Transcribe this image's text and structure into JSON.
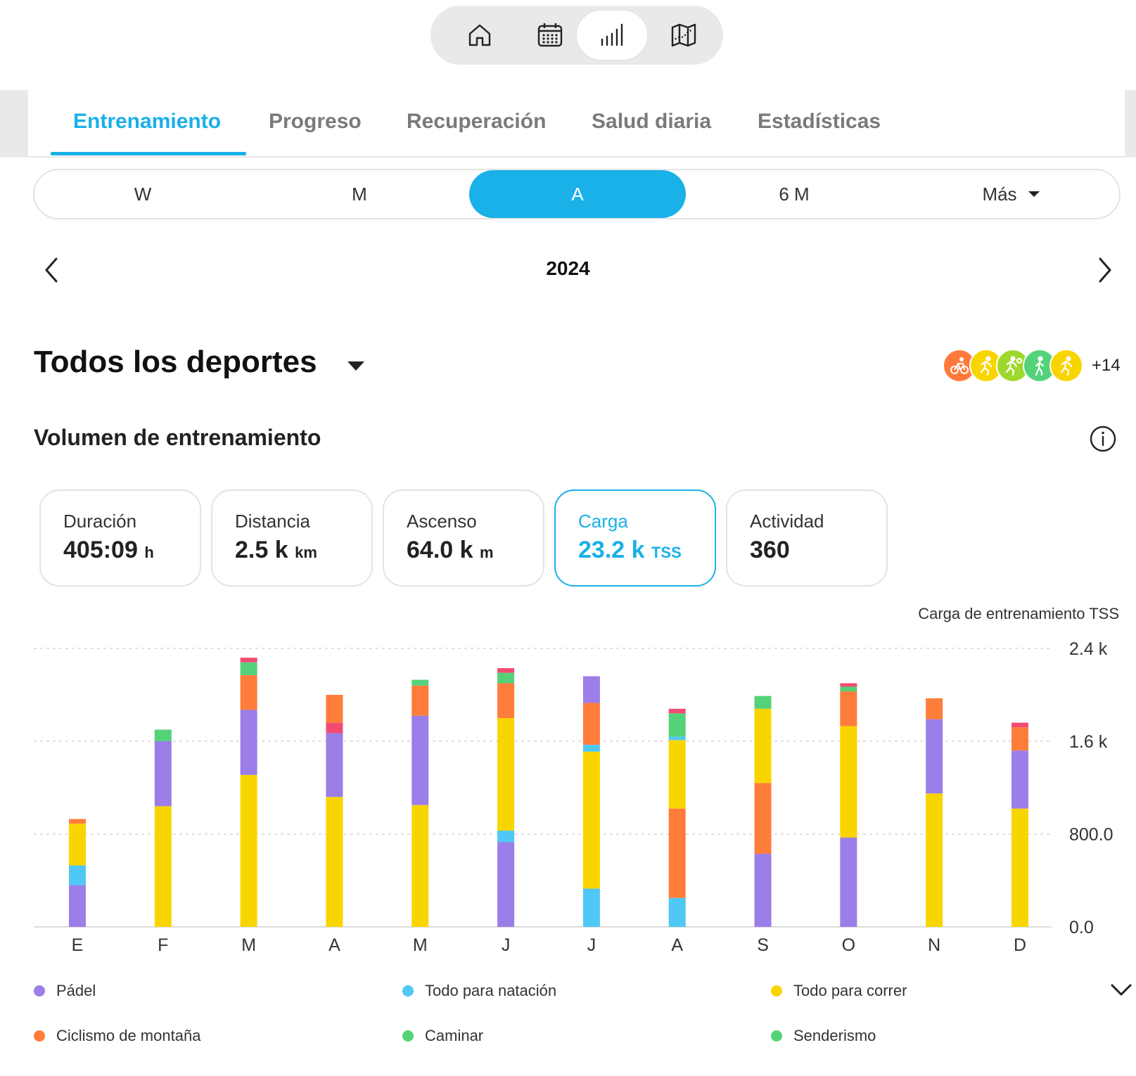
{
  "top_nav": {
    "items": [
      {
        "icon": "home-icon"
      },
      {
        "icon": "calendar-icon"
      },
      {
        "icon": "bar-chart-icon",
        "active": true
      },
      {
        "icon": "map-icon"
      }
    ]
  },
  "tabs": [
    {
      "label": "Entrenamiento",
      "active": true
    },
    {
      "label": "Progreso"
    },
    {
      "label": "Recuperación"
    },
    {
      "label": "Salud diaria"
    },
    {
      "label": "Estadísticas"
    }
  ],
  "period": {
    "options": [
      "W",
      "M",
      "A",
      "6 M",
      "Más"
    ],
    "selected": "A"
  },
  "year_nav": {
    "label": "2024"
  },
  "sport": {
    "title": "Todos los deportes",
    "icons": [
      {
        "icon": "cycling-icon",
        "color": "#ff7a3a"
      },
      {
        "icon": "running-icon",
        "color": "#f9d500"
      },
      {
        "icon": "trail-running-icon",
        "color": "#9ed82c"
      },
      {
        "icon": "walking-icon",
        "color": "#54d27a"
      },
      {
        "icon": "running-icon",
        "color": "#f9d500"
      }
    ],
    "more": "+14"
  },
  "section": {
    "title": "Volumen de entrenamiento"
  },
  "metrics": [
    {
      "label": "Duración",
      "value": "405:09",
      "unit": "h"
    },
    {
      "label": "Distancia",
      "value": "2.5 k",
      "unit": "km"
    },
    {
      "label": "Ascenso",
      "value": "64.0 k",
      "unit": "m"
    },
    {
      "label": "Carga",
      "value": "23.2 k",
      "unit": "TSS",
      "active": true
    },
    {
      "label": "Actividad",
      "value": "360",
      "unit": ""
    }
  ],
  "colors": {
    "accent": "#1ab0e8",
    "padel": "#9b7ee8",
    "natacion": "#4fc8f5",
    "correr": "#f9d500",
    "montana": "#ff7d3a",
    "caminar": "#54d27a",
    "senderismo": "#54d27a",
    "extra": "#f24b72"
  },
  "chart_data": {
    "type": "bar",
    "stacked": true,
    "title": "",
    "ylabel": "Carga de entrenamiento TSS",
    "xlabel": "",
    "ylim": [
      0,
      2400
    ],
    "ytick_labels": [
      "0.0",
      "800.0",
      "1.6 k",
      "2.4 k"
    ],
    "ytick_values": [
      0,
      800,
      1600,
      2400
    ],
    "grid": true,
    "categories": [
      "E",
      "F",
      "M",
      "A",
      "M",
      "J",
      "J",
      "A",
      "S",
      "O",
      "N",
      "D"
    ],
    "series": [
      {
        "name": "Pádel",
        "color": "#9b7ee8",
        "values": [
          360,
          0,
          0,
          0,
          0,
          730,
          0,
          0,
          630,
          770,
          0,
          0
        ]
      },
      {
        "name": "Todo para natación",
        "color": "#4fc8f5",
        "values": [
          170,
          0,
          0,
          0,
          0,
          100,
          330,
          250,
          0,
          0,
          0,
          0
        ]
      },
      {
        "name": "Ciclismo de montaña",
        "color": "#ff7d3a",
        "values": [
          0,
          0,
          0,
          0,
          0,
          0,
          0,
          770,
          610,
          0,
          0,
          0
        ]
      },
      {
        "name": "Todo para correr",
        "color": "#f9d500",
        "values": [
          360,
          1040,
          1310,
          1120,
          1050,
          970,
          1180,
          590,
          640,
          960,
          1150,
          1020
        ]
      },
      {
        "name": "Pádel",
        "color": "#9b7ee8",
        "values": [
          0,
          560,
          560,
          550,
          770,
          0,
          0,
          0,
          0,
          0,
          640,
          500
        ]
      },
      {
        "name": "Todo para natación",
        "color": "#4fc8f5",
        "values": [
          0,
          0,
          0,
          0,
          0,
          0,
          60,
          0,
          0,
          0,
          0,
          0
        ]
      },
      {
        "name": "Ciclismo de montaña",
        "color": "#ff7d3a",
        "values": [
          40,
          0,
          300,
          0,
          260,
          300,
          360,
          0,
          0,
          300,
          180,
          200
        ]
      },
      {
        "name": "Todo para natación",
        "color": "#4fc8f5",
        "values": [
          0,
          0,
          0,
          0,
          0,
          0,
          0,
          30,
          0,
          0,
          0,
          0
        ]
      },
      {
        "name": "Caminar",
        "color": "#54d27a",
        "values": [
          0,
          100,
          110,
          0,
          50,
          90,
          0,
          200,
          110,
          40,
          0,
          0
        ]
      },
      {
        "name": "",
        "color": "#f24b72",
        "values": [
          0,
          0,
          40,
          90,
          0,
          40,
          0,
          40,
          0,
          30,
          0,
          40
        ]
      },
      {
        "name": "Ciclismo de montaña",
        "color": "#ff7d3a",
        "values": [
          0,
          0,
          0,
          240,
          0,
          0,
          0,
          0,
          0,
          0,
          0,
          0
        ]
      },
      {
        "name": "Pádel",
        "color": "#9b7ee8",
        "values": [
          0,
          0,
          0,
          0,
          0,
          0,
          230,
          0,
          0,
          0,
          0,
          0
        ]
      }
    ],
    "legend": [
      {
        "name": "Pádel",
        "color": "#9b7ee8"
      },
      {
        "name": "Todo para natación",
        "color": "#4fc8f5"
      },
      {
        "name": "Todo para correr",
        "color": "#f9d500"
      },
      {
        "name": "Ciclismo de montaña",
        "color": "#ff7d3a"
      },
      {
        "name": "Caminar",
        "color": "#54d27a"
      },
      {
        "name": "Senderismo",
        "color": "#54d27a"
      }
    ],
    "legend_placement": "bottom"
  }
}
